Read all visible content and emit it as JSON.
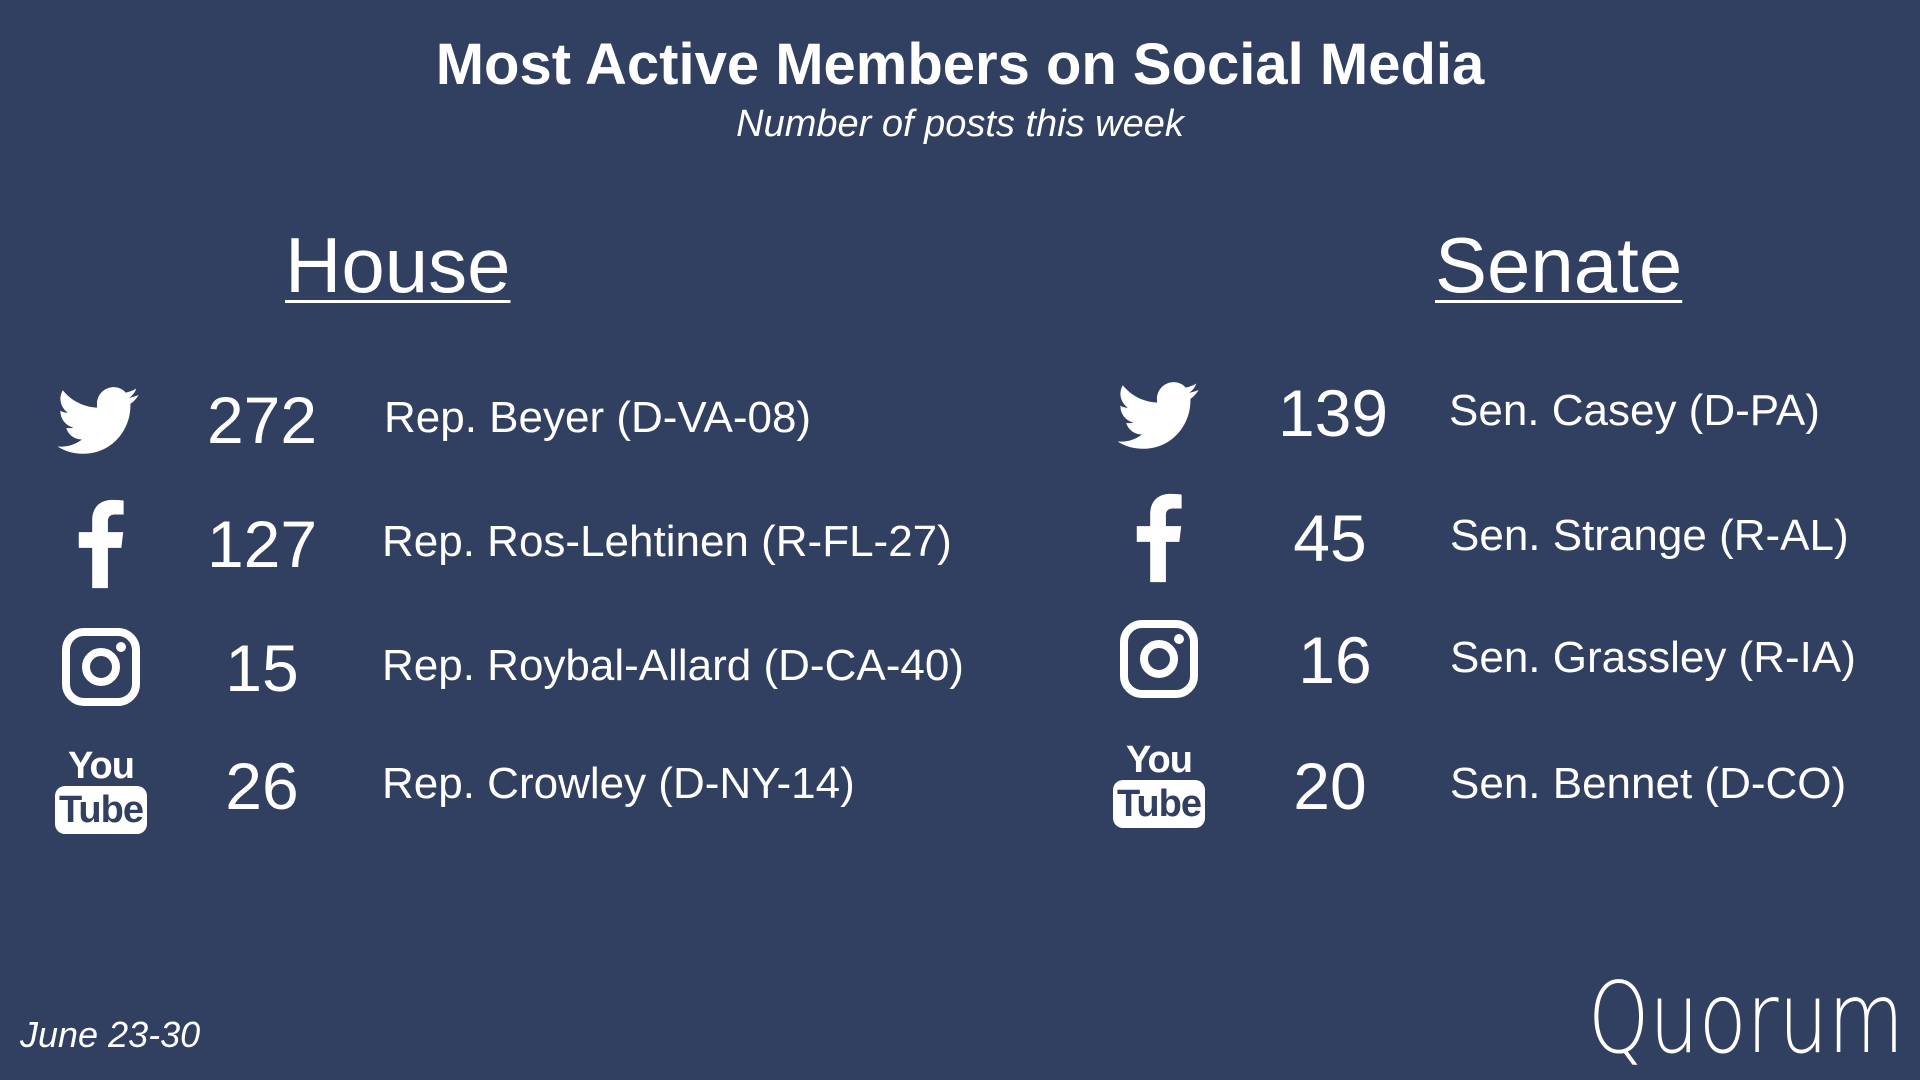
{
  "title": "Most Active Members on Social Media",
  "subtitle": "Number of posts this week",
  "date_range": "June 23-30",
  "logo_text": "Quorum",
  "colors": {
    "background": "#313f60",
    "text": "#ffffff"
  },
  "house": {
    "heading": "House",
    "rows": [
      {
        "icon": "twitter-icon",
        "count": "272",
        "name": "Rep. Beyer (D-VA-08)"
      },
      {
        "icon": "facebook-icon",
        "count": "127",
        "name": "Rep. Ros-Lehtinen (R-FL-27)"
      },
      {
        "icon": "instagram-icon",
        "count": "15",
        "name": "Rep. Roybal-Allard (D-CA-40)"
      },
      {
        "icon": "youtube-icon",
        "count": "26",
        "name": "Rep. Crowley (D-NY-14)"
      }
    ]
  },
  "senate": {
    "heading": "Senate",
    "rows": [
      {
        "icon": "twitter-icon",
        "count": "139",
        "name": "Sen. Casey (D-PA)"
      },
      {
        "icon": "facebook-icon",
        "count": "45",
        "name": "Sen. Strange (R-AL)"
      },
      {
        "icon": "instagram-icon",
        "count": "16",
        "name": "Sen. Grassley (R-IA)"
      },
      {
        "icon": "youtube-icon",
        "count": "20",
        "name": "Sen. Bennet (D-CO)"
      }
    ]
  },
  "youtube_icon_text": {
    "top": "You",
    "bottom": "Tube"
  }
}
